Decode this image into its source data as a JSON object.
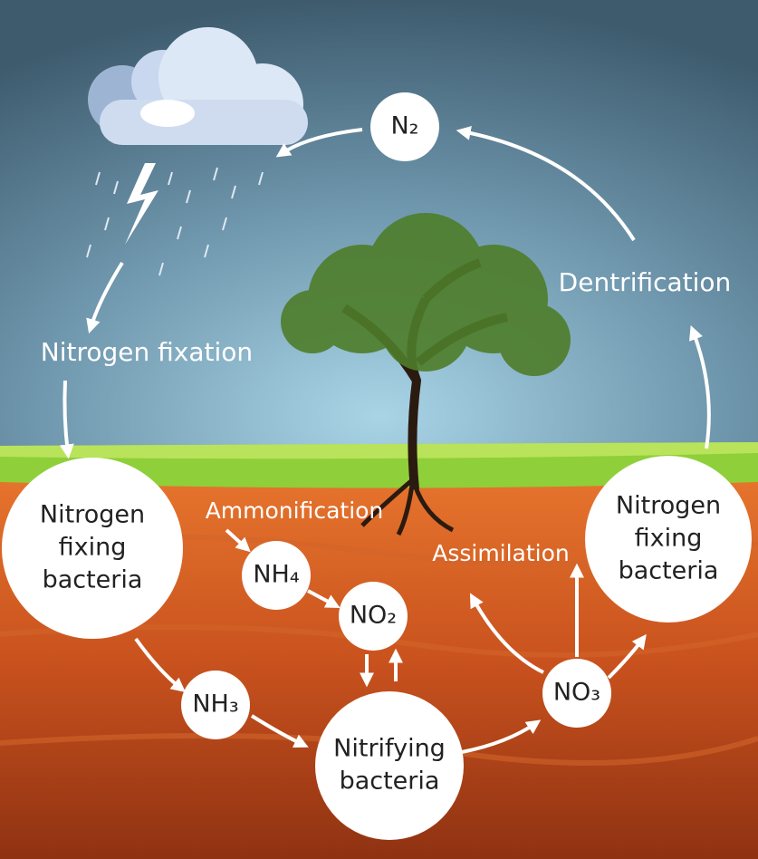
{
  "labels": {
    "fixation": "Nitrogen fixation",
    "denitrification": "Dentrification",
    "ammonification": "Ammonification",
    "assimilation": "Assimilation"
  },
  "nodes": [
    {
      "lines": [
        "N₂"
      ]
    },
    {
      "lines": [
        "Nitrogen",
        "fixing",
        "bacteria"
      ]
    },
    {
      "lines": [
        "NH₄"
      ]
    },
    {
      "lines": [
        "NO₂"
      ]
    },
    {
      "lines": [
        "NH₃"
      ]
    },
    {
      "lines": [
        "Nitrifying",
        "bacteria"
      ]
    },
    {
      "lines": [
        "NO₃"
      ]
    },
    {
      "lines": [
        "Nitrogen",
        "fixing",
        "bacteria"
      ]
    }
  ]
}
